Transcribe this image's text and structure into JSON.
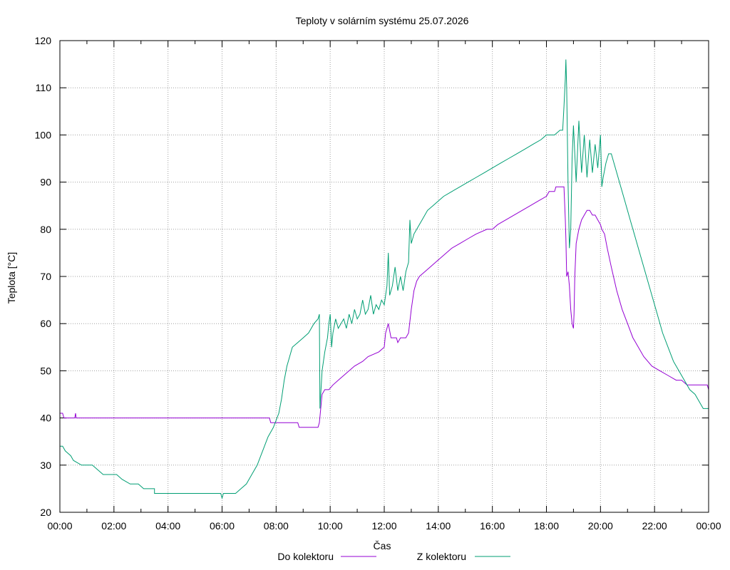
{
  "chart_data": {
    "type": "line",
    "title": "Teploty v solárním systému 25.07.2026",
    "xlabel": "Čas",
    "ylabel": "Teplota [°C]",
    "xlim": [
      0,
      24
    ],
    "ylim": [
      20,
      120
    ],
    "grid": true,
    "legend_position": "bottom-center",
    "x_tick_labels": [
      "00:00",
      "02:00",
      "04:00",
      "06:00",
      "08:00",
      "10:00",
      "12:00",
      "14:00",
      "16:00",
      "18:00",
      "20:00",
      "22:00",
      "00:00"
    ],
    "y_tick_labels": [
      "20",
      "30",
      "40",
      "50",
      "60",
      "70",
      "80",
      "90",
      "100",
      "110",
      "120"
    ],
    "series": [
      {
        "name": "Do kolektoru",
        "color": "#9400d3",
        "points": [
          [
            0.0,
            41
          ],
          [
            0.1,
            41
          ],
          [
            0.15,
            40
          ],
          [
            0.55,
            40
          ],
          [
            0.58,
            41
          ],
          [
            0.6,
            40
          ],
          [
            1.0,
            40
          ],
          [
            3.0,
            40
          ],
          [
            5.0,
            40
          ],
          [
            7.0,
            40
          ],
          [
            7.75,
            40
          ],
          [
            7.8,
            39
          ],
          [
            8.5,
            39
          ],
          [
            8.8,
            39
          ],
          [
            8.85,
            38
          ],
          [
            9.55,
            38
          ],
          [
            9.6,
            39
          ],
          [
            9.65,
            42
          ],
          [
            9.7,
            45
          ],
          [
            9.8,
            46
          ],
          [
            9.95,
            46
          ],
          [
            10.1,
            47
          ],
          [
            10.3,
            48
          ],
          [
            10.5,
            49
          ],
          [
            10.7,
            50
          ],
          [
            10.9,
            51
          ],
          [
            11.2,
            52
          ],
          [
            11.4,
            53
          ],
          [
            11.8,
            54
          ],
          [
            12.0,
            55
          ],
          [
            12.05,
            58
          ],
          [
            12.15,
            60
          ],
          [
            12.25,
            57
          ],
          [
            12.45,
            57
          ],
          [
            12.5,
            56
          ],
          [
            12.6,
            57
          ],
          [
            12.8,
            57
          ],
          [
            12.9,
            58
          ],
          [
            13.0,
            63
          ],
          [
            13.1,
            67
          ],
          [
            13.2,
            69
          ],
          [
            13.3,
            70
          ],
          [
            13.5,
            71
          ],
          [
            13.7,
            72
          ],
          [
            13.9,
            73
          ],
          [
            14.1,
            74
          ],
          [
            14.3,
            75
          ],
          [
            14.5,
            76
          ],
          [
            14.8,
            77
          ],
          [
            15.1,
            78
          ],
          [
            15.4,
            79
          ],
          [
            15.8,
            80
          ],
          [
            16.0,
            80
          ],
          [
            16.2,
            81
          ],
          [
            16.5,
            82
          ],
          [
            16.8,
            83
          ],
          [
            17.1,
            84
          ],
          [
            17.4,
            85
          ],
          [
            17.7,
            86
          ],
          [
            18.0,
            87
          ],
          [
            18.1,
            88
          ],
          [
            18.3,
            88
          ],
          [
            18.35,
            89
          ],
          [
            18.65,
            89
          ],
          [
            18.7,
            82
          ],
          [
            18.72,
            78
          ],
          [
            18.75,
            70
          ],
          [
            18.8,
            71
          ],
          [
            18.85,
            68
          ],
          [
            18.9,
            63
          ],
          [
            18.95,
            60
          ],
          [
            19.0,
            59
          ],
          [
            19.02,
            62
          ],
          [
            19.05,
            70
          ],
          [
            19.1,
            77
          ],
          [
            19.2,
            80
          ],
          [
            19.3,
            82
          ],
          [
            19.4,
            83
          ],
          [
            19.5,
            84
          ],
          [
            19.6,
            84
          ],
          [
            19.7,
            83
          ],
          [
            19.8,
            83
          ],
          [
            19.9,
            82
          ],
          [
            20.0,
            81
          ],
          [
            20.05,
            80
          ],
          [
            20.15,
            79
          ],
          [
            20.25,
            76
          ],
          [
            20.4,
            72
          ],
          [
            20.6,
            67
          ],
          [
            20.8,
            63
          ],
          [
            21.0,
            60
          ],
          [
            21.2,
            57
          ],
          [
            21.4,
            55
          ],
          [
            21.6,
            53
          ],
          [
            21.9,
            51
          ],
          [
            22.2,
            50
          ],
          [
            22.5,
            49
          ],
          [
            22.8,
            48
          ],
          [
            23.0,
            48
          ],
          [
            23.2,
            47
          ],
          [
            23.5,
            47
          ],
          [
            23.8,
            47
          ],
          [
            23.95,
            47
          ],
          [
            24.0,
            46
          ]
        ]
      },
      {
        "name": "Z kolektoru",
        "color": "#009e73",
        "points": [
          [
            0.0,
            34
          ],
          [
            0.1,
            34
          ],
          [
            0.2,
            33
          ],
          [
            0.4,
            32
          ],
          [
            0.5,
            31
          ],
          [
            0.8,
            30
          ],
          [
            1.2,
            30
          ],
          [
            1.4,
            29
          ],
          [
            1.6,
            28
          ],
          [
            2.1,
            28
          ],
          [
            2.3,
            27
          ],
          [
            2.6,
            26
          ],
          [
            2.9,
            26
          ],
          [
            3.1,
            25
          ],
          [
            3.5,
            25
          ],
          [
            3.5,
            24
          ],
          [
            4.0,
            24
          ],
          [
            4.5,
            24
          ],
          [
            5.0,
            24
          ],
          [
            5.5,
            24
          ],
          [
            5.95,
            24
          ],
          [
            6.0,
            23
          ],
          [
            6.05,
            24
          ],
          [
            6.5,
            24
          ],
          [
            6.7,
            25
          ],
          [
            6.9,
            26
          ],
          [
            7.1,
            28
          ],
          [
            7.3,
            30
          ],
          [
            7.5,
            33
          ],
          [
            7.7,
            36
          ],
          [
            7.9,
            38
          ],
          [
            8.1,
            41
          ],
          [
            8.2,
            44
          ],
          [
            8.3,
            48
          ],
          [
            8.4,
            51
          ],
          [
            8.5,
            53
          ],
          [
            8.6,
            55
          ],
          [
            8.8,
            56
          ],
          [
            9.0,
            57
          ],
          [
            9.2,
            58
          ],
          [
            9.4,
            60
          ],
          [
            9.55,
            61
          ],
          [
            9.6,
            62
          ],
          [
            9.62,
            42
          ],
          [
            9.65,
            45
          ],
          [
            9.7,
            50
          ],
          [
            9.8,
            54
          ],
          [
            9.9,
            57
          ],
          [
            9.95,
            60
          ],
          [
            10.0,
            62
          ],
          [
            10.05,
            55
          ],
          [
            10.1,
            58
          ],
          [
            10.2,
            61
          ],
          [
            10.3,
            59
          ],
          [
            10.4,
            60
          ],
          [
            10.5,
            61
          ],
          [
            10.6,
            59
          ],
          [
            10.7,
            62
          ],
          [
            10.8,
            60
          ],
          [
            10.9,
            63
          ],
          [
            11.0,
            61
          ],
          [
            11.1,
            62
          ],
          [
            11.2,
            65
          ],
          [
            11.3,
            62
          ],
          [
            11.4,
            63
          ],
          [
            11.5,
            66
          ],
          [
            11.6,
            62
          ],
          [
            11.7,
            64
          ],
          [
            11.8,
            63
          ],
          [
            11.9,
            65
          ],
          [
            12.0,
            64
          ],
          [
            12.1,
            68
          ],
          [
            12.15,
            75
          ],
          [
            12.2,
            66
          ],
          [
            12.3,
            68
          ],
          [
            12.4,
            72
          ],
          [
            12.5,
            67
          ],
          [
            12.6,
            70
          ],
          [
            12.7,
            67
          ],
          [
            12.8,
            71
          ],
          [
            12.9,
            73
          ],
          [
            12.95,
            82
          ],
          [
            13.0,
            77
          ],
          [
            13.1,
            79
          ],
          [
            13.2,
            80
          ],
          [
            13.4,
            82
          ],
          [
            13.6,
            84
          ],
          [
            13.8,
            85
          ],
          [
            14.0,
            86
          ],
          [
            14.2,
            87
          ],
          [
            14.5,
            88
          ],
          [
            14.8,
            89
          ],
          [
            15.1,
            90
          ],
          [
            15.4,
            91
          ],
          [
            15.7,
            92
          ],
          [
            16.0,
            93
          ],
          [
            16.3,
            94
          ],
          [
            16.6,
            95
          ],
          [
            16.9,
            96
          ],
          [
            17.2,
            97
          ],
          [
            17.5,
            98
          ],
          [
            17.8,
            99
          ],
          [
            18.0,
            100
          ],
          [
            18.3,
            100
          ],
          [
            18.5,
            101
          ],
          [
            18.6,
            101
          ],
          [
            18.65,
            106
          ],
          [
            18.7,
            112
          ],
          [
            18.72,
            116
          ],
          [
            18.75,
            110
          ],
          [
            18.8,
            90
          ],
          [
            18.85,
            76
          ],
          [
            18.9,
            80
          ],
          [
            18.95,
            95
          ],
          [
            19.0,
            102
          ],
          [
            19.1,
            90
          ],
          [
            19.2,
            103
          ],
          [
            19.3,
            92
          ],
          [
            19.4,
            100
          ],
          [
            19.5,
            91
          ],
          [
            19.6,
            99
          ],
          [
            19.7,
            92
          ],
          [
            19.8,
            98
          ],
          [
            19.9,
            93
          ],
          [
            20.0,
            100
          ],
          [
            20.05,
            89
          ],
          [
            20.1,
            91
          ],
          [
            20.2,
            94
          ],
          [
            20.3,
            96
          ],
          [
            20.4,
            96
          ],
          [
            20.5,
            94
          ],
          [
            20.7,
            90
          ],
          [
            20.9,
            86
          ],
          [
            21.1,
            82
          ],
          [
            21.3,
            78
          ],
          [
            21.5,
            74
          ],
          [
            21.7,
            70
          ],
          [
            21.9,
            66
          ],
          [
            22.1,
            62
          ],
          [
            22.3,
            58
          ],
          [
            22.5,
            55
          ],
          [
            22.7,
            52
          ],
          [
            22.9,
            50
          ],
          [
            23.1,
            48
          ],
          [
            23.3,
            46
          ],
          [
            23.5,
            45
          ],
          [
            23.7,
            43
          ],
          [
            23.8,
            42
          ],
          [
            24.0,
            42
          ]
        ]
      }
    ]
  }
}
